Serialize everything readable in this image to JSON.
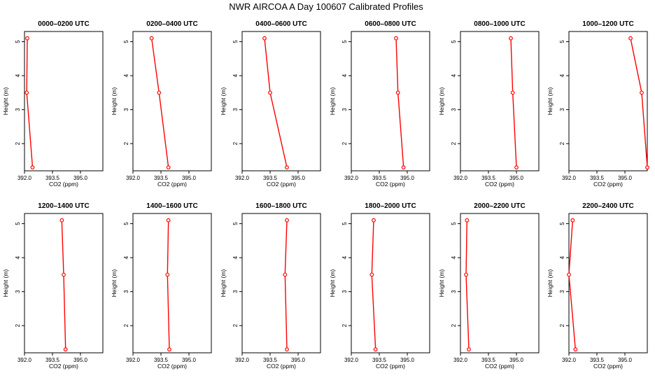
{
  "title": "NWR AIRCOA A  Day 100607  Calibrated Profiles",
  "colors": {
    "profile": "#ff0000",
    "frame": "#000000"
  },
  "chart_data": [
    {
      "type": "line",
      "title": "0000–0200 UTC",
      "xlabel": "CO2 (ppm)",
      "ylabel": "Height (m)",
      "xlim": [
        392.0,
        396.2
      ],
      "ylim": [
        1.2,
        5.3
      ],
      "xticks": [
        "392.0",
        "393.5",
        "395.0"
      ],
      "yticks": [
        "2",
        "3",
        "4",
        "5"
      ],
      "x": [
        392.15,
        392.12,
        392.43
      ],
      "y": [
        5.1,
        3.5,
        1.3
      ]
    },
    {
      "type": "line",
      "title": "0200–0400 UTC",
      "xlabel": "CO2 (ppm)",
      "ylabel": "Height (m)",
      "xlim": [
        392.0,
        396.2
      ],
      "ylim": [
        1.2,
        5.3
      ],
      "xticks": [
        "392.0",
        "393.5",
        "395.0"
      ],
      "yticks": [
        "2",
        "3",
        "4",
        "5"
      ],
      "x": [
        393.0,
        393.4,
        393.9
      ],
      "y": [
        5.1,
        3.5,
        1.3
      ]
    },
    {
      "type": "line",
      "title": "0400–0600 UTC",
      "xlabel": "CO2 (ppm)",
      "ylabel": "Height (m)",
      "xlim": [
        392.0,
        396.2
      ],
      "ylim": [
        1.2,
        5.3
      ],
      "xticks": [
        "392.0",
        "393.5",
        "395.0"
      ],
      "yticks": [
        "2",
        "3",
        "4",
        "5"
      ],
      "x": [
        393.2,
        393.5,
        394.4
      ],
      "y": [
        5.1,
        3.5,
        1.3
      ]
    },
    {
      "type": "line",
      "title": "0600–0800 UTC",
      "xlabel": "CO2 (ppm)",
      "ylabel": "Height (m)",
      "xlim": [
        392.0,
        396.2
      ],
      "ylim": [
        1.2,
        5.3
      ],
      "xticks": [
        "392.0",
        "393.5",
        "395.0"
      ],
      "yticks": [
        "2",
        "3",
        "4",
        "5"
      ],
      "x": [
        394.4,
        394.5,
        394.8
      ],
      "y": [
        5.1,
        3.5,
        1.3
      ]
    },
    {
      "type": "line",
      "title": "0800–1000 UTC",
      "xlabel": "CO2 (ppm)",
      "ylabel": "Height (m)",
      "xlim": [
        392.0,
        396.2
      ],
      "ylim": [
        1.2,
        5.3
      ],
      "xticks": [
        "392.0",
        "393.5",
        "395.0"
      ],
      "yticks": [
        "2",
        "3",
        "4",
        "5"
      ],
      "x": [
        394.7,
        394.8,
        395.0
      ],
      "y": [
        5.1,
        3.5,
        1.3
      ]
    },
    {
      "type": "line",
      "title": "1000–1200 UTC",
      "xlabel": "CO2 (ppm)",
      "ylabel": "Height (m)",
      "xlim": [
        392.0,
        396.2
      ],
      "ylim": [
        1.2,
        5.3
      ],
      "xticks": [
        "392.0",
        "393.5",
        "395.0"
      ],
      "yticks": [
        "2",
        "3",
        "4",
        "5"
      ],
      "x": [
        395.3,
        395.9,
        396.2
      ],
      "y": [
        5.1,
        3.5,
        1.3
      ]
    },
    {
      "type": "line",
      "title": "1200–1400 UTC",
      "xlabel": "CO2 (ppm)",
      "ylabel": "Height (m)",
      "xlim": [
        392.0,
        396.2
      ],
      "ylim": [
        1.2,
        5.3
      ],
      "xticks": [
        "392.0",
        "393.5",
        "395.0"
      ],
      "yticks": [
        "2",
        "3",
        "4",
        "5"
      ],
      "x": [
        394.0,
        394.1,
        394.2
      ],
      "y": [
        5.1,
        3.5,
        1.3
      ]
    },
    {
      "type": "line",
      "title": "1400–1600 UTC",
      "xlabel": "CO2 (ppm)",
      "ylabel": "Height (m)",
      "xlim": [
        392.0,
        396.2
      ],
      "ylim": [
        1.2,
        5.3
      ],
      "xticks": [
        "392.0",
        "393.5",
        "395.0"
      ],
      "yticks": [
        "2",
        "3",
        "4",
        "5"
      ],
      "x": [
        393.9,
        393.85,
        393.95
      ],
      "y": [
        5.1,
        3.5,
        1.3
      ]
    },
    {
      "type": "line",
      "title": "1600–1800 UTC",
      "xlabel": "CO2 (ppm)",
      "ylabel": "Height (m)",
      "xlim": [
        392.0,
        396.2
      ],
      "ylim": [
        1.2,
        5.3
      ],
      "xticks": [
        "392.0",
        "393.5",
        "395.0"
      ],
      "yticks": [
        "2",
        "3",
        "4",
        "5"
      ],
      "x": [
        394.4,
        394.3,
        394.4
      ],
      "y": [
        5.1,
        3.5,
        1.3
      ]
    },
    {
      "type": "line",
      "title": "1800–2000 UTC",
      "xlabel": "CO2 (ppm)",
      "ylabel": "Height (m)",
      "xlim": [
        392.0,
        396.2
      ],
      "ylim": [
        1.2,
        5.3
      ],
      "xticks": [
        "392.0",
        "393.5",
        "395.0"
      ],
      "yticks": [
        "2",
        "3",
        "4",
        "5"
      ],
      "x": [
        393.2,
        393.1,
        393.3
      ],
      "y": [
        5.1,
        3.5,
        1.3
      ]
    },
    {
      "type": "line",
      "title": "2000–2200 UTC",
      "xlabel": "CO2 (ppm)",
      "ylabel": "Height (m)",
      "xlim": [
        392.0,
        396.2
      ],
      "ylim": [
        1.2,
        5.3
      ],
      "xticks": [
        "392.0",
        "393.5",
        "395.0"
      ],
      "yticks": [
        "2",
        "3",
        "4",
        "5"
      ],
      "x": [
        392.35,
        392.3,
        392.45
      ],
      "y": [
        5.1,
        3.5,
        1.3
      ]
    },
    {
      "type": "line",
      "title": "2200–2400 UTC",
      "xlabel": "CO2 (ppm)",
      "ylabel": "Height (m)",
      "xlim": [
        392.0,
        396.2
      ],
      "ylim": [
        1.2,
        5.3
      ],
      "xticks": [
        "392.0",
        "393.5",
        "395.0"
      ],
      "yticks": [
        "2",
        "3",
        "4",
        "5"
      ],
      "x": [
        392.2,
        392.0,
        392.35
      ],
      "y": [
        5.1,
        3.5,
        1.3
      ]
    }
  ]
}
